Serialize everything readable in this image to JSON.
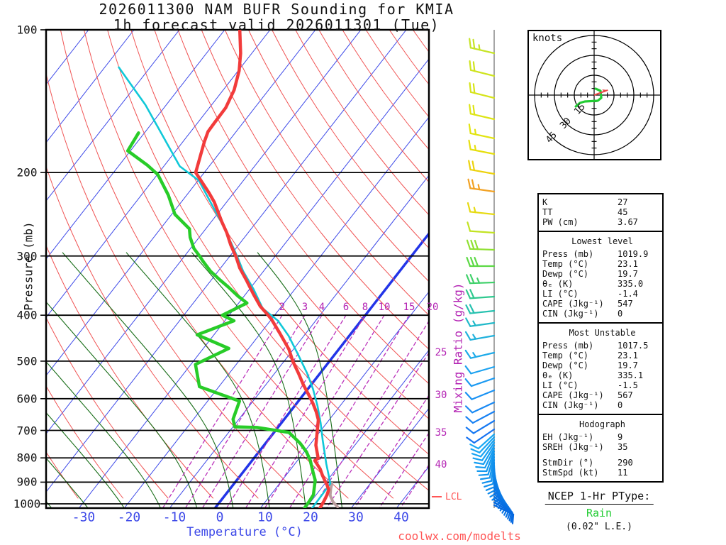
{
  "title": {
    "line1": "2026011300 NAM BUFR Sounding for KMIA",
    "line2": "1h forecast valid 2026011301 (Tue)"
  },
  "axes": {
    "pressure_label": "Pressure (mb)",
    "pressure_ticks": [
      100,
      200,
      300,
      400,
      500,
      600,
      700,
      800,
      900,
      1000
    ],
    "temp_label": "Temperature (°C)",
    "temp_ticks": [
      -30,
      -20,
      -10,
      0,
      10,
      20,
      30,
      40
    ],
    "mixing_label": "Mixing Ratio (g/kg)",
    "lcl_label": "LCL"
  },
  "watermark": "coolwx.com/modelts",
  "hodograph": {
    "unit_label": "knots",
    "ring_labels": [
      "15",
      "30",
      "45"
    ]
  },
  "stats": {
    "sections": [
      {
        "header": "",
        "rows": [
          [
            "K",
            "27"
          ],
          [
            "TT",
            "45"
          ],
          [
            "PW (cm)",
            "3.67"
          ]
        ]
      },
      {
        "header": "Lowest level",
        "rows": [
          [
            "Press (mb)",
            "1019.9"
          ],
          [
            "Temp (°C)",
            "23.1"
          ],
          [
            "Dewp (°C)",
            "19.7"
          ],
          [
            "θₑ (K)",
            "335.0"
          ],
          [
            "LI (°C)",
            "-1.4"
          ],
          [
            "CAPE (Jkg⁻¹)",
            "547"
          ],
          [
            "CIN (Jkg⁻¹)",
            "0"
          ]
        ]
      },
      {
        "header": "Most Unstable",
        "rows": [
          [
            "Press (mb)",
            "1017.5"
          ],
          [
            "Temp (°C)",
            "23.1"
          ],
          [
            "Dewp (°C)",
            "19.7"
          ],
          [
            "θₑ (K)",
            "335.1"
          ],
          [
            "LI (°C)",
            "-1.5"
          ],
          [
            "CAPE (Jkg⁻¹)",
            "567"
          ],
          [
            "CIN (Jkg⁻¹)",
            "0"
          ]
        ]
      },
      {
        "header": "Hodograph",
        "rows": [
          [
            "EH (Jkg⁻¹)",
            "9"
          ],
          [
            "SREH (Jkg⁻¹)",
            "35"
          ],
          [
            "GAP",
            ""
          ],
          [
            "StmDir (°)",
            "290"
          ],
          [
            "StmSpd (kt)",
            "11"
          ]
        ]
      }
    ]
  },
  "ptype": {
    "title": "NCEP 1-Hr PType:",
    "value": "Rain",
    "extra": "(0.02\" L.E.)"
  },
  "colors": {
    "isotherm": "#3d49e8",
    "zero_isotherm": "#2335e8",
    "dry_adiabat": "#f05454",
    "moist_adiabat": "#1a6e1a",
    "mixing_line": "#bb33bb",
    "temperature_curve": "#f23b3b",
    "dewpoint_curve": "#28cc28",
    "wetbulb_curve": "#10c8d8",
    "parcel_curve": "#bb9f9f",
    "hodo_trace": "#22cc33",
    "storm_arrow": "#e84545",
    "barb_line": "#888888"
  },
  "chart_data": {
    "type": "line",
    "subtype": "skewt-logp-sounding",
    "title": "2026011300 NAM BUFR Sounding for KMIA, 1h forecast valid 2026011301 (Tue)",
    "xlabel": "Temperature (°C)",
    "ylabel": "Pressure (mb)",
    "pressure_range": [
      100,
      1020
    ],
    "surface_temp_range": [
      -40,
      45
    ],
    "skew": "45deg isotherms",
    "series": [
      {
        "name": "temperature",
        "p": [
          100,
          112,
          122,
          134,
          146,
          157,
          164,
          172,
          183,
          200,
          221,
          231,
          254,
          268,
          284,
          302,
          318,
          337,
          361,
          383,
          398,
          408,
          437,
          472,
          501,
          530,
          560,
          593,
          614,
          640,
          665,
          700,
          752,
          802,
          810,
          845,
          870,
          897,
          914,
          934,
          957,
          987,
          1020
        ],
        "t": [
          -76.7,
          -72.5,
          -69.8,
          -67.6,
          -66.4,
          -66.3,
          -66.2,
          -65.3,
          -63.9,
          -61.9,
          -55.4,
          -52.7,
          -47.7,
          -44.7,
          -41.8,
          -38.4,
          -35.8,
          -32.3,
          -28.3,
          -24.7,
          -21.8,
          -20.0,
          -15.7,
          -11.0,
          -8.0,
          -4.8,
          -1.8,
          1.6,
          3.6,
          5.8,
          7.6,
          9.2,
          11.4,
          14.2,
          13.8,
          16.5,
          18.0,
          19.7,
          20.8,
          21.9,
          22.4,
          22.8,
          23.1
        ]
      },
      {
        "name": "dewpoint",
        "p": [
          165,
          180,
          193,
          202,
          223,
          245,
          263,
          274,
          289,
          301,
          308,
          323,
          337,
          349,
          364,
          377,
          400,
          411,
          440,
          470,
          508,
          566,
          607,
          663,
          688,
          690,
          707,
          745,
          777,
          810,
          857,
          892,
          929,
          957,
          987,
          1020
        ],
        "t": [
          -81.3,
          -80.6,
          -73.8,
          -69.9,
          -64.1,
          -59.3,
          -53.6,
          -52.0,
          -49.3,
          -46.5,
          -45.0,
          -41.7,
          -38.1,
          -35.0,
          -31.5,
          -28.2,
          -31.5,
          -28.0,
          -33.7,
          -24.4,
          -29.0,
          -24.3,
          -13.0,
          -11.3,
          -9.6,
          -4.6,
          3.3,
          7.6,
          10.5,
          12.8,
          15.4,
          17.3,
          18.5,
          19.4,
          19.6,
          19.7
        ]
      },
      {
        "name": "wetbulb",
        "p": [
          120,
          144,
          194,
          208,
          256,
          284,
          302,
          323,
          352,
          387,
          411,
          442,
          484,
          530,
          572,
          621,
          676,
          733,
          823,
          906,
          963,
          1020
        ],
        "t": [
          -96.9,
          -84.6,
          -66.5,
          -59.8,
          -47.4,
          -41.5,
          -38.1,
          -34.5,
          -29.2,
          -23.8,
          -18.3,
          -13.4,
          -8.1,
          -2.9,
          1.1,
          5.0,
          8.7,
          12.0,
          16.9,
          21.2,
          21.3,
          21.4
        ]
      },
      {
        "name": "parcel",
        "p": [
          905,
          930,
          960,
          990,
          1015
        ],
        "t": [
          21.5,
          22.2,
          23.2,
          24.9,
          26.8
        ]
      }
    ],
    "mixing_lines_g_per_kg": [
      2,
      3,
      4,
      6,
      8,
      10,
      15,
      20,
      25,
      30,
      35,
      40
    ],
    "lcl_pressure_mb": 985,
    "winds": {
      "barbs": [
        {
          "y": 75,
          "spd": 25,
          "dir": 283,
          "c": "#c6e426"
        },
        {
          "y": 107,
          "spd": 20,
          "dir": 284,
          "c": "#cfe41f"
        },
        {
          "y": 138,
          "spd": 20,
          "dir": 284,
          "c": "#d6e41a"
        },
        {
          "y": 168,
          "spd": 20,
          "dir": 283,
          "c": "#dde414"
        },
        {
          "y": 195,
          "spd": 15,
          "dir": 282,
          "c": "#e2e410"
        },
        {
          "y": 217,
          "spd": 15,
          "dir": 281,
          "c": "#e6df0e"
        },
        {
          "y": 245,
          "spd": 20,
          "dir": 280,
          "c": "#ecd20e"
        },
        {
          "y": 270,
          "spd": 25,
          "dir": 278,
          "c": "#f2a224"
        },
        {
          "y": 302,
          "spd": 15,
          "dir": 276,
          "c": "#e6da12"
        },
        {
          "y": 328,
          "spd": 10,
          "dir": 274,
          "c": "#c2e322"
        },
        {
          "y": 352,
          "spd": 30,
          "dir": 272,
          "c": "#8fe032"
        },
        {
          "y": 375,
          "spd": 30,
          "dir": 270,
          "c": "#5cd944"
        },
        {
          "y": 398,
          "spd": 25,
          "dir": 268,
          "c": "#41d16b"
        },
        {
          "y": 418,
          "spd": 20,
          "dir": 266,
          "c": "#2fc98f"
        },
        {
          "y": 438,
          "spd": 20,
          "dir": 264,
          "c": "#26c1af"
        },
        {
          "y": 455,
          "spd": 15,
          "dir": 262,
          "c": "#21b9c9"
        },
        {
          "y": 473,
          "spd": 15,
          "dir": 260,
          "c": "#1fb1dc"
        },
        {
          "y": 497,
          "spd": 15,
          "dir": 257,
          "c": "#1daae9"
        },
        {
          "y": 517,
          "spd": 10,
          "dir": 254,
          "c": "#1ca2f0"
        },
        {
          "y": 533,
          "spd": 10,
          "dir": 251,
          "c": "#1b9af2"
        },
        {
          "y": 550,
          "spd": 10,
          "dir": 248,
          "c": "#1a92f3"
        },
        {
          "y": 567,
          "spd": 10,
          "dir": 245,
          "c": "#1989f3"
        },
        {
          "y": 580,
          "spd": 10,
          "dir": 242,
          "c": "#1881f3"
        },
        {
          "y": 593,
          "spd": 10,
          "dir": 239,
          "c": "#1779f2"
        },
        {
          "y": 605,
          "spd": 10,
          "dir": 236,
          "c": "#1672f1"
        }
      ],
      "surface_cluster": {
        "y0": 612,
        "dy": 4,
        "n": 26,
        "dir0": 228,
        "ddir": -4.5,
        "spd": 10,
        "c0": "#18a8f4",
        "c1": "#0668e0"
      }
    },
    "hodograph_trace_kt": {
      "u": [
        1.1,
        4.8,
        5.4,
        2.7,
        -7.0,
        -10.7,
        -13.9
      ],
      "v": [
        4.8,
        3.2,
        -2.1,
        -4.3,
        -4.8,
        -5.9,
        -8.6
      ]
    },
    "storm_motion": {
      "dir_deg": 290,
      "spd_kt": 11
    }
  }
}
